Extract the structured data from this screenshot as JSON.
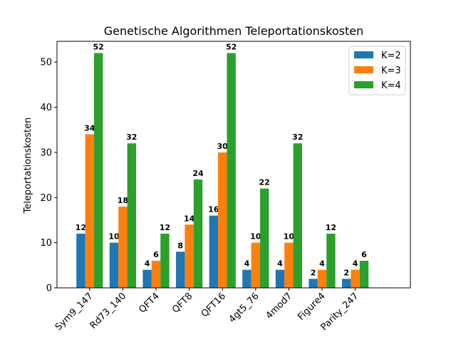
{
  "chart_data": {
    "type": "bar",
    "title": "Genetische Algorithmen Teleportationskosten",
    "xlabel": "",
    "ylabel": "Teleportationskosten",
    "categories": [
      "Sym9_147",
      "Rd73_140",
      "QFT4",
      "QFT8",
      "QFT16",
      "4gt5_76",
      "4mod7",
      "Figure4",
      "Parity_247"
    ],
    "series": [
      {
        "name": "K=2",
        "color": "#1f77b4",
        "values": [
          12,
          10,
          4,
          8,
          16,
          4,
          4,
          2,
          2
        ]
      },
      {
        "name": "K=3",
        "color": "#ff7f0e",
        "values": [
          34,
          18,
          6,
          14,
          30,
          10,
          10,
          4,
          4
        ]
      },
      {
        "name": "K=4",
        "color": "#2ca02c",
        "values": [
          52,
          32,
          12,
          24,
          52,
          22,
          32,
          12,
          6
        ]
      }
    ],
    "ylim": [
      0,
      54.6
    ],
    "yticks": [
      0,
      10,
      20,
      30,
      40,
      50
    ],
    "grid": false,
    "legend": "top-right",
    "data_labels": true
  }
}
